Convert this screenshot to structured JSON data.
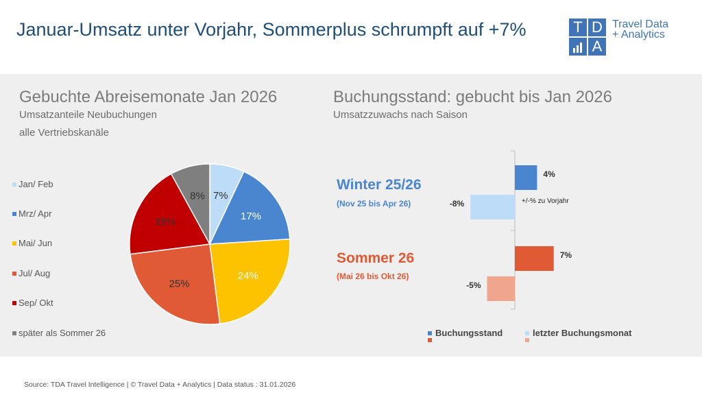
{
  "header": {
    "title": "Januar-Umsatz unter Vorjahr, Sommerplus schrumpft auf +7%",
    "logo": {
      "t": "T",
      "d": "D",
      "a": "A",
      "line1": "Travel Data",
      "line2": "+ Analytics"
    }
  },
  "left": {
    "heading": "Gebuchte Abreisemonate Jan 2026",
    "subtitle1": "Umsatzanteile Neubuchungen",
    "subtitle2": "alle Vertriebskanäle"
  },
  "right": {
    "heading": "Buchungsstand: gebucht bis Jan 2026",
    "subtitle": "Umsatzzuwachs nach Saison",
    "axis_label": "+/-% zu Vorjahr",
    "winter_title": "Winter 25/26",
    "winter_sub": "(Nov 25 bis Apr 26)",
    "summer_title": "Sommer 26",
    "summer_sub": "(Mai 26 bis Okt 26)",
    "legend_booked": "Buchungsstand",
    "legend_last": "letzter Buchungsmonat"
  },
  "footer": "Source: TDA Travel Intelligence   |   © Travel Data + Analytics   | Data status : 31.01.2026",
  "colors": {
    "title": "#1f4e79",
    "winter": "#4a86cf",
    "winter_light": "#bcdcf7",
    "summer": "#e05a35",
    "summer_light": "#f0a58e"
  },
  "chart_data": [
    {
      "type": "pie",
      "title": "Gebuchte Abreisemonate Jan 2026",
      "unit": "%",
      "slices": [
        {
          "label": "Jan/ Feb",
          "value": 7,
          "display": "7%",
          "color": "#bcdcf7",
          "text_color": "#333333"
        },
        {
          "label": "Mrz/ Apr",
          "value": 17,
          "display": "17%",
          "color": "#4a86cf",
          "text_color": "#ffffff"
        },
        {
          "label": "Mai/ Jun",
          "value": 24,
          "display": "24%",
          "color": "#fdc200",
          "text_color": "#ffffff"
        },
        {
          "label": "Jul/ Aug",
          "value": 25,
          "display": "25%",
          "color": "#e05a35",
          "text_color": "#333333"
        },
        {
          "label": "Sep/ Okt",
          "value": 19,
          "display": "19%",
          "color": "#c00000",
          "text_color": "#333333"
        },
        {
          "label": "später als Sommer 26",
          "value": 8,
          "display": "8%",
          "color": "#7f7f7f",
          "text_color": "#333333"
        }
      ]
    },
    {
      "type": "bar",
      "orientation": "horizontal",
      "title": "Buchungsstand: gebucht bis Jan 2026",
      "xlabel": "+/-% zu Vorjahr",
      "xlim": [
        -10,
        10
      ],
      "bars": [
        {
          "group": "Winter 25/26",
          "series": "Buchungsstand",
          "value": 4,
          "display": "4%",
          "color": "#4a86cf"
        },
        {
          "group": "Winter 25/26",
          "series": "letzter Buchungsmonat",
          "value": -8,
          "display": "-8%",
          "color": "#bcdcf7"
        },
        {
          "group": "Sommer 26",
          "series": "Buchungsstand",
          "value": 7,
          "display": "7%",
          "color": "#e05a35"
        },
        {
          "group": "Sommer 26",
          "series": "letzter Buchungsmonat",
          "value": -5,
          "display": "-5%",
          "color": "#f0a58e"
        }
      ]
    }
  ]
}
